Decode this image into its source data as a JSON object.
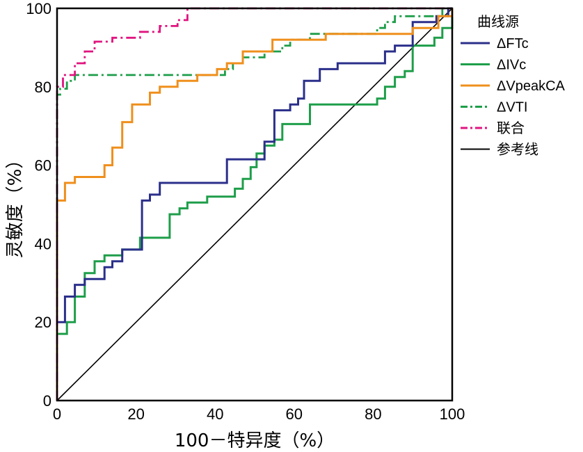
{
  "chart_data": {
    "type": "line",
    "xlabel": "100－特异度（%）",
    "ylabel": "灵敏度（%）",
    "xlim": [
      0,
      100
    ],
    "ylim": [
      0,
      100
    ],
    "xticks": [
      0,
      20,
      40,
      60,
      80,
      100
    ],
    "yticks": [
      0,
      20,
      40,
      60,
      80,
      100
    ],
    "grid": false,
    "legend_title": "曲线源",
    "legend_position": "right",
    "series": [
      {
        "name": "ΔFTc",
        "color": "#2b2f8a",
        "style": "solid",
        "points": [
          [
            0,
            0
          ],
          [
            0,
            20
          ],
          [
            2,
            20
          ],
          [
            2,
            26.5
          ],
          [
            4.5,
            26.5
          ],
          [
            4.5,
            29.5
          ],
          [
            7,
            29.5
          ],
          [
            7,
            31
          ],
          [
            12,
            31
          ],
          [
            12,
            34
          ],
          [
            14,
            34
          ],
          [
            14,
            35.5
          ],
          [
            16.5,
            35.5
          ],
          [
            16.5,
            38.5
          ],
          [
            21.5,
            38.5
          ],
          [
            21.5,
            51
          ],
          [
            23.5,
            51
          ],
          [
            23.5,
            52.5
          ],
          [
            26,
            52.5
          ],
          [
            26,
            55.5
          ],
          [
            43,
            55.5
          ],
          [
            43,
            61.5
          ],
          [
            52.5,
            61.5
          ],
          [
            52.5,
            66
          ],
          [
            55,
            66
          ],
          [
            55,
            74
          ],
          [
            59,
            74
          ],
          [
            59,
            75.5
          ],
          [
            61,
            75.5
          ],
          [
            61,
            77
          ],
          [
            62.5,
            77
          ],
          [
            62.5,
            81.5
          ],
          [
            66.5,
            81.5
          ],
          [
            66.5,
            84.5
          ],
          [
            71,
            84.5
          ],
          [
            71,
            86
          ],
          [
            83,
            86
          ],
          [
            83,
            89
          ],
          [
            85.5,
            89
          ],
          [
            85.5,
            90.5
          ],
          [
            90,
            90.5
          ],
          [
            90,
            96.5
          ],
          [
            96,
            96.5
          ],
          [
            96,
            98
          ],
          [
            99,
            98
          ],
          [
            99,
            100
          ],
          [
            100,
            100
          ]
        ]
      },
      {
        "name": "ΔIVc",
        "color": "#1e9e4a",
        "style": "solid",
        "points": [
          [
            0,
            0
          ],
          [
            0,
            17
          ],
          [
            2.5,
            17
          ],
          [
            2.5,
            20
          ],
          [
            4.5,
            20
          ],
          [
            4.5,
            26.5
          ],
          [
            7,
            26.5
          ],
          [
            7,
            32.5
          ],
          [
            9.5,
            32.5
          ],
          [
            9.5,
            35.5
          ],
          [
            12,
            35.5
          ],
          [
            12,
            37
          ],
          [
            16.5,
            37
          ],
          [
            16.5,
            38.5
          ],
          [
            21,
            38.5
          ],
          [
            21,
            41.5
          ],
          [
            28.5,
            41.5
          ],
          [
            28.5,
            47.5
          ],
          [
            31,
            47.5
          ],
          [
            31,
            49
          ],
          [
            33,
            49
          ],
          [
            33,
            50.5
          ],
          [
            38,
            50.5
          ],
          [
            38,
            52
          ],
          [
            45,
            52
          ],
          [
            45,
            54
          ],
          [
            47,
            54
          ],
          [
            47,
            56.5
          ],
          [
            49,
            56.5
          ],
          [
            49,
            59.5
          ],
          [
            50.5,
            59.5
          ],
          [
            50.5,
            63
          ],
          [
            52.5,
            63
          ],
          [
            52.5,
            65
          ],
          [
            55,
            65
          ],
          [
            55,
            66.5
          ],
          [
            57,
            66.5
          ],
          [
            57,
            70.5
          ],
          [
            64,
            70.5
          ],
          [
            64,
            75.5
          ],
          [
            81,
            75.5
          ],
          [
            81,
            77
          ],
          [
            83,
            77
          ],
          [
            83,
            80
          ],
          [
            85.5,
            80
          ],
          [
            85.5,
            82.5
          ],
          [
            88,
            82.5
          ],
          [
            88,
            84
          ],
          [
            90,
            84
          ],
          [
            90,
            90.5
          ],
          [
            95.5,
            90.5
          ],
          [
            95.5,
            92.5
          ],
          [
            97.5,
            92.5
          ],
          [
            97.5,
            95
          ],
          [
            100,
            95
          ],
          [
            100,
            100
          ]
        ]
      },
      {
        "name": "ΔVpeakCA",
        "color": "#ef8f1c",
        "style": "solid",
        "points": [
          [
            0,
            0
          ],
          [
            0,
            51
          ],
          [
            2,
            51
          ],
          [
            2,
            55.5
          ],
          [
            4.5,
            55.5
          ],
          [
            4.5,
            57
          ],
          [
            12,
            57
          ],
          [
            12,
            60
          ],
          [
            14,
            60
          ],
          [
            14,
            64.5
          ],
          [
            16.5,
            64.5
          ],
          [
            16.5,
            71
          ],
          [
            19,
            71
          ],
          [
            19,
            75.5
          ],
          [
            23.5,
            75.5
          ],
          [
            23.5,
            78.5
          ],
          [
            26,
            78.5
          ],
          [
            26,
            80
          ],
          [
            30.5,
            80
          ],
          [
            30.5,
            81.5
          ],
          [
            35.5,
            81.5
          ],
          [
            35.5,
            83
          ],
          [
            40.5,
            83
          ],
          [
            40.5,
            84.5
          ],
          [
            43,
            84.5
          ],
          [
            43,
            86
          ],
          [
            47,
            86
          ],
          [
            47,
            89
          ],
          [
            54.5,
            89
          ],
          [
            54.5,
            92
          ],
          [
            68,
            92
          ],
          [
            68,
            93.5
          ],
          [
            90,
            93.5
          ],
          [
            90,
            95
          ],
          [
            96.5,
            95
          ],
          [
            96.5,
            98
          ],
          [
            100,
            98
          ],
          [
            100,
            100
          ]
        ]
      },
      {
        "name": "ΔVTI",
        "color": "#1e9e4a",
        "style": "dashdot",
        "points": [
          [
            0,
            0
          ],
          [
            0,
            78
          ],
          [
            0.8,
            78
          ],
          [
            0.8,
            79.5
          ],
          [
            2.5,
            79.5
          ],
          [
            2.5,
            81.5
          ],
          [
            4.5,
            81.5
          ],
          [
            4.5,
            83
          ],
          [
            42.5,
            83
          ],
          [
            42.5,
            84.5
          ],
          [
            44.5,
            84.5
          ],
          [
            44.5,
            86
          ],
          [
            47,
            86
          ],
          [
            47,
            87.5
          ],
          [
            52.5,
            87.5
          ],
          [
            52.5,
            89
          ],
          [
            57,
            89
          ],
          [
            57,
            90.5
          ],
          [
            59,
            90.5
          ],
          [
            59,
            92
          ],
          [
            64,
            92
          ],
          [
            64,
            93.5
          ],
          [
            81,
            93.5
          ],
          [
            81,
            95
          ],
          [
            83,
            95
          ],
          [
            83,
            96.5
          ],
          [
            85.5,
            96.5
          ],
          [
            85.5,
            98
          ],
          [
            97.5,
            98
          ],
          [
            97.5,
            100
          ],
          [
            100,
            100
          ]
        ]
      },
      {
        "name": "联合",
        "color": "#e0147f",
        "style": "dashdot",
        "points": [
          [
            0,
            0
          ],
          [
            0,
            80
          ],
          [
            1.5,
            80
          ],
          [
            1.5,
            83
          ],
          [
            4.5,
            83
          ],
          [
            4.5,
            86
          ],
          [
            7,
            86
          ],
          [
            7,
            89
          ],
          [
            9.5,
            89
          ],
          [
            9.5,
            91.5
          ],
          [
            14,
            91.5
          ],
          [
            14,
            92.5
          ],
          [
            21,
            92.5
          ],
          [
            21,
            94
          ],
          [
            26,
            94
          ],
          [
            26,
            95.5
          ],
          [
            30.5,
            95.5
          ],
          [
            30.5,
            97
          ],
          [
            33,
            97
          ],
          [
            33,
            100
          ],
          [
            100,
            100
          ]
        ]
      },
      {
        "name": "参考线",
        "color": "#000000",
        "style": "solid-thin",
        "points": [
          [
            0,
            0
          ],
          [
            100,
            100
          ]
        ]
      }
    ]
  }
}
